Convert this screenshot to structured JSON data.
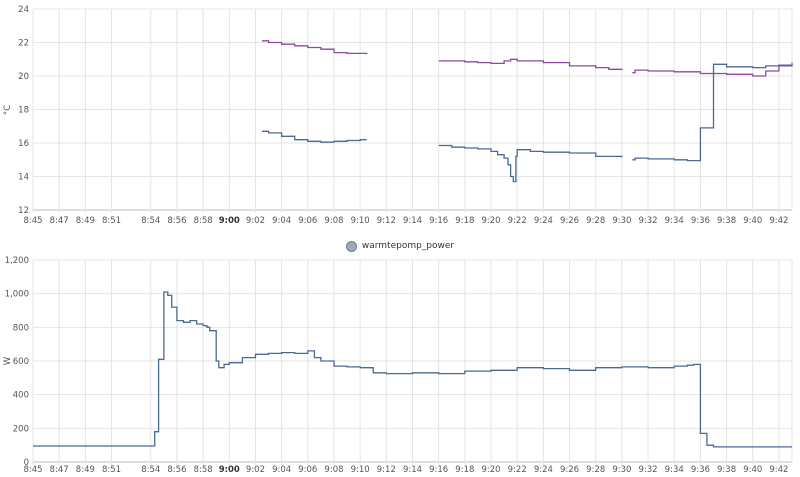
{
  "charts": [
    {
      "chart_data": {
        "type": "line",
        "title": "",
        "xlabel": "",
        "ylabel": "°C",
        "ylim": [
          12,
          24
        ],
        "yticks": [
          12,
          14,
          16,
          18,
          20,
          22,
          24
        ],
        "xlim": [
          "8:45",
          "9:43"
        ],
        "xticks": [
          "8:45",
          "8:47",
          "8:49",
          "8:51",
          "8:54",
          "8:56",
          "8:58",
          "9:00",
          "9:02",
          "9:04",
          "9:06",
          "9:08",
          "9:10",
          "9:12",
          "9:14",
          "9:16",
          "9:18",
          "9:20",
          "9:22",
          "9:24",
          "9:26",
          "9:28",
          "9:30",
          "9:32",
          "9:34",
          "9:36",
          "9:38",
          "9:40",
          "9:42"
        ],
        "bold_ticks": [
          "9:00"
        ],
        "grid": true,
        "legend": "none",
        "step": true,
        "series": [
          {
            "color": "#8e4a9e",
            "segments": [
              [
                [
                  "9:02.5",
                  22.1
                ],
                [
                  "9:03",
                  22.0
                ],
                [
                  "9:04",
                  21.9
                ],
                [
                  "9:05",
                  21.8
                ],
                [
                  "9:06",
                  21.7
                ],
                [
                  "9:07",
                  21.6
                ],
                [
                  "9:08",
                  21.4
                ],
                [
                  "9:09",
                  21.35
                ],
                [
                  "9:10.5",
                  21.3
                ]
              ],
              [
                [
                  "9:16",
                  20.9
                ],
                [
                  "9:18",
                  20.85
                ],
                [
                  "9:19",
                  20.8
                ],
                [
                  "9:20",
                  20.75
                ],
                [
                  "9:21",
                  20.9
                ],
                [
                  "9:21.5",
                  21.0
                ],
                [
                  "9:22",
                  20.9
                ],
                [
                  "9:24",
                  20.8
                ],
                [
                  "9:26",
                  20.6
                ],
                [
                  "9:28",
                  20.5
                ],
                [
                  "9:29",
                  20.4
                ],
                [
                  "9:30",
                  20.35
                ]
              ],
              [
                [
                  "9:30.8",
                  20.2
                ],
                [
                  "9:31",
                  20.35
                ],
                [
                  "9:32",
                  20.3
                ],
                [
                  "9:34",
                  20.25
                ],
                [
                  "9:36",
                  20.15
                ],
                [
                  "9:38",
                  20.1
                ],
                [
                  "9:40",
                  20.0
                ],
                [
                  "9:41",
                  20.3
                ],
                [
                  "9:42",
                  20.6
                ],
                [
                  "9:43",
                  20.8
                ]
              ]
            ]
          },
          {
            "color": "#4a6a94",
            "segments": [
              [
                [
                  "9:02.5",
                  16.7
                ],
                [
                  "9:03",
                  16.6
                ],
                [
                  "9:04",
                  16.4
                ],
                [
                  "9:05",
                  16.2
                ],
                [
                  "9:06",
                  16.1
                ],
                [
                  "9:07",
                  16.05
                ],
                [
                  "9:08",
                  16.1
                ],
                [
                  "9:09",
                  16.15
                ],
                [
                  "9:10",
                  16.2
                ],
                [
                  "9:10.5",
                  16.2
                ]
              ],
              [
                [
                  "9:16",
                  15.85
                ],
                [
                  "9:17",
                  15.75
                ],
                [
                  "9:18",
                  15.7
                ],
                [
                  "9:19",
                  15.65
                ],
                [
                  "9:20",
                  15.5
                ],
                [
                  "9:20.5",
                  15.3
                ],
                [
                  "9:21",
                  15.1
                ],
                [
                  "9:21.3",
                  14.7
                ],
                [
                  "9:21.5",
                  14.0
                ],
                [
                  "9:21.7",
                  13.7
                ],
                [
                  "9:21.9",
                  15.2
                ],
                [
                  "9:22",
                  15.6
                ],
                [
                  "9:23",
                  15.5
                ],
                [
                  "9:24",
                  15.45
                ],
                [
                  "9:26",
                  15.4
                ],
                [
                  "9:28",
                  15.2
                ],
                [
                  "9:30",
                  15.15
                ]
              ],
              [
                [
                  "9:30.8",
                  15.0
                ],
                [
                  "9:31",
                  15.1
                ],
                [
                  "9:32",
                  15.05
                ],
                [
                  "9:34",
                  15.0
                ],
                [
                  "9:35",
                  14.95
                ],
                [
                  "9:36",
                  16.9
                ],
                [
                  "9:37",
                  20.7
                ],
                [
                  "9:38",
                  20.55
                ],
                [
                  "9:40",
                  20.5
                ],
                [
                  "9:41",
                  20.6
                ],
                [
                  "9:42",
                  20.65
                ],
                [
                  "9:43",
                  20.6
                ]
              ]
            ]
          }
        ]
      }
    },
    {
      "chart_data": {
        "type": "line",
        "title": "",
        "xlabel": "",
        "ylabel": "W",
        "ylim": [
          0,
          1200
        ],
        "yticks": [
          0,
          200,
          400,
          600,
          800,
          1000,
          1200
        ],
        "ytick_labels": [
          "0",
          "200",
          "400",
          "600",
          "800",
          "1,000",
          "1,200"
        ],
        "xlim": [
          "8:45",
          "9:43"
        ],
        "xticks": [
          "8:45",
          "8:47",
          "8:49",
          "8:51",
          "8:54",
          "8:56",
          "8:58",
          "9:00",
          "9:02",
          "9:04",
          "9:06",
          "9:08",
          "9:10",
          "9:12",
          "9:14",
          "9:16",
          "9:18",
          "9:20",
          "9:22",
          "9:24",
          "9:26",
          "9:28",
          "9:30",
          "9:32",
          "9:34",
          "9:36",
          "9:38",
          "9:40",
          "9:42"
        ],
        "bold_ticks": [
          "9:00"
        ],
        "grid": true,
        "legend": "top-center",
        "step": true,
        "series": [
          {
            "name": "warmtepomp_power",
            "color": "#4a6a94",
            "points": [
              [
                "8:45",
                95
              ],
              [
                "8:54.2",
                95
              ],
              [
                "8:54.3",
                180
              ],
              [
                "8:54.6",
                610
              ],
              [
                "8:55",
                1010
              ],
              [
                "8:55.3",
                990
              ],
              [
                "8:55.6",
                920
              ],
              [
                "8:56",
                840
              ],
              [
                "8:56.5",
                830
              ],
              [
                "8:57",
                840
              ],
              [
                "8:57.5",
                820
              ],
              [
                "8:58",
                810
              ],
              [
                "8:58.3",
                800
              ],
              [
                "8:58.5",
                780
              ],
              [
                "8:59",
                600
              ],
              [
                "8:59.2",
                560
              ],
              [
                "8:59.6",
                580
              ],
              [
                "9:00",
                590
              ],
              [
                "9:01",
                620
              ],
              [
                "9:02",
                640
              ],
              [
                "9:03",
                645
              ],
              [
                "9:04",
                650
              ],
              [
                "9:05",
                645
              ],
              [
                "9:06",
                660
              ],
              [
                "9:06.5",
                620
              ],
              [
                "9:07",
                600
              ],
              [
                "9:08",
                570
              ],
              [
                "9:09",
                565
              ],
              [
                "9:10",
                560
              ],
              [
                "9:11",
                530
              ],
              [
                "9:12",
                525
              ],
              [
                "9:14",
                530
              ],
              [
                "9:16",
                525
              ],
              [
                "9:18",
                540
              ],
              [
                "9:20",
                545
              ],
              [
                "9:22",
                560
              ],
              [
                "9:24",
                555
              ],
              [
                "9:26",
                545
              ],
              [
                "9:28",
                560
              ],
              [
                "9:30",
                565
              ],
              [
                "9:32",
                560
              ],
              [
                "9:34",
                570
              ],
              [
                "9:35",
                575
              ],
              [
                "9:35.5",
                580
              ],
              [
                "9:36",
                170
              ],
              [
                "9:36.5",
                100
              ],
              [
                "9:37",
                90
              ],
              [
                "9:43",
                90
              ]
            ]
          }
        ]
      }
    }
  ]
}
